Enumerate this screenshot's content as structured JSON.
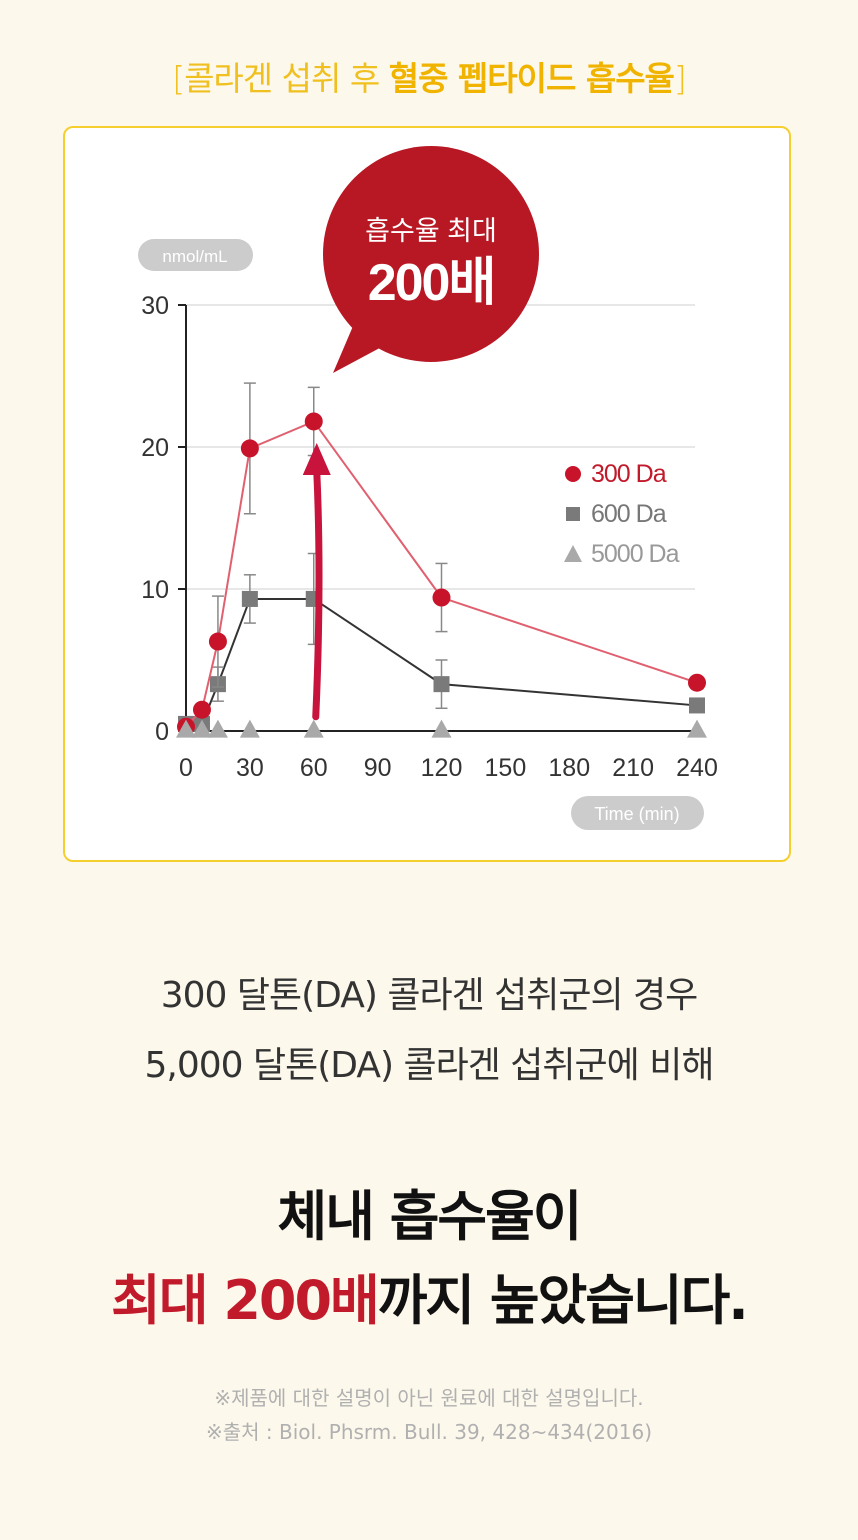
{
  "header": {
    "open_bracket": "[",
    "plain": "콜라겐 섭취 후 ",
    "strong": "혈중 펩타이드 흡수율",
    "close_bracket": "]"
  },
  "colors": {
    "accent_yellow": "#f0b400",
    "brand_red": "#c01a2b",
    "series_300": "#c8142a",
    "series_600": "#7a7a7a",
    "series_5000": "#a9a9a9"
  },
  "chart_data": {
    "type": "line",
    "ylabel": "nmol/mL",
    "xlabel": "Time (min)",
    "xlim": [
      0,
      240
    ],
    "ylim": [
      0,
      30
    ],
    "x_ticks": [
      0,
      30,
      60,
      90,
      120,
      150,
      180,
      210,
      240
    ],
    "y_ticks": [
      0,
      10,
      20,
      30
    ],
    "grid": true,
    "legend_position": "right",
    "series": [
      {
        "name": "300 Da",
        "marker": "circle",
        "color": "#c8142a",
        "line_color": "#e06070",
        "x": [
          0,
          7.5,
          15,
          30,
          60,
          120,
          240
        ],
        "y": [
          0.3,
          1.5,
          6.3,
          19.9,
          21.8,
          9.4,
          3.4
        ],
        "err": [
          0,
          0,
          3.2,
          4.6,
          2.4,
          2.4,
          0
        ]
      },
      {
        "name": "600 Da",
        "marker": "square",
        "color": "#7a7a7a",
        "line_color": "#333333",
        "x": [
          0,
          7.5,
          15,
          30,
          60,
          120,
          240
        ],
        "y": [
          0.5,
          0.5,
          3.3,
          9.3,
          9.3,
          3.3,
          1.8
        ],
        "err": [
          0,
          0,
          1.2,
          1.7,
          3.2,
          1.7,
          0
        ]
      },
      {
        "name": "5000 Da",
        "marker": "triangle",
        "color": "#a9a9a9",
        "line_color": "#a9a9a9",
        "x": [
          0,
          7.5,
          15,
          30,
          60,
          120,
          240
        ],
        "y": [
          0.1,
          0.1,
          0.1,
          0.1,
          0.1,
          0.1,
          0.1
        ],
        "err": [
          0,
          0,
          0,
          0,
          0,
          0,
          0
        ]
      }
    ],
    "annotation": {
      "line1": "흡수율 최대",
      "line2": "200배",
      "arrow_from": {
        "x": 60,
        "y": 1
      },
      "arrow_to": {
        "x": 60,
        "y": 20
      }
    }
  },
  "description": {
    "line1": "300 달톤(DA) 콜라겐 섭취군의 경우",
    "line2": "5,000 달톤(DA) 콜라겐 섭취군에 비해"
  },
  "headline": {
    "line1": "체내 흡수율이",
    "line2_red": "최대 200배",
    "line2_rest": "까지 높았습니다."
  },
  "notes": {
    "line1": "※제품에 대한 설명이 아닌 원료에 대한 설명입니다.",
    "line2": "※출처 : Biol. Phsrm. Bull. 39, 428~434(2016)"
  }
}
